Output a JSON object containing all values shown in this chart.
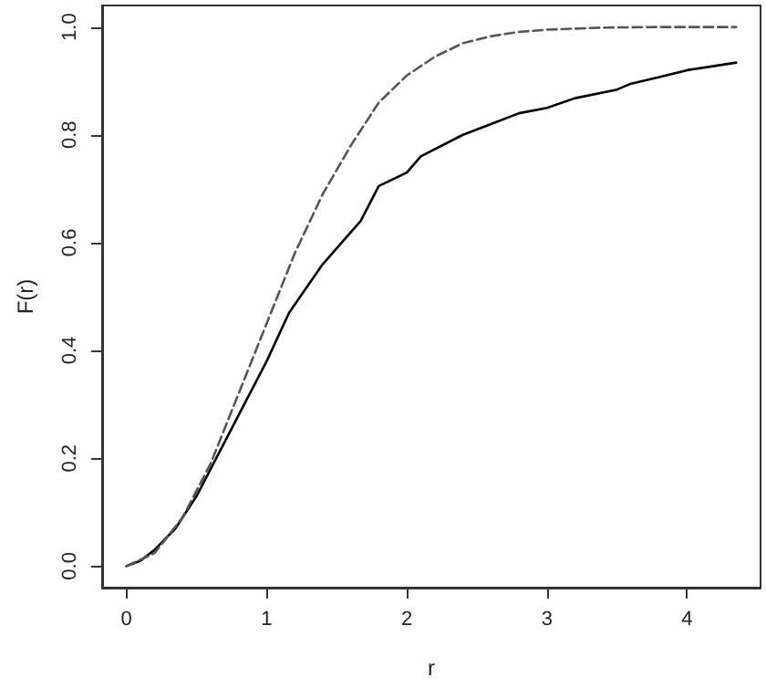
{
  "chart_data": {
    "type": "line",
    "xlabel": "r",
    "ylabel": "F(r)",
    "xlim": [
      -0.174,
      4.524
    ],
    "ylim": [
      -0.04,
      1.04
    ],
    "xticks": [
      0,
      1,
      2,
      3,
      4
    ],
    "yticks": [
      {
        "value": 0,
        "label": "0.0"
      },
      {
        "value": 0.2,
        "label": "0.2"
      },
      {
        "value": 0.4,
        "label": "0.4"
      },
      {
        "value": 0.6,
        "label": "0.6"
      },
      {
        "value": 0.8,
        "label": "0.8"
      },
      {
        "value": 1,
        "label": "1.0"
      }
    ],
    "grid": false,
    "marker": "none",
    "series": [
      {
        "color": "#000000",
        "line_style": "solid",
        "x": [
          0,
          0.1,
          0.2,
          0.35,
          0.5,
          0.6,
          0.8,
          1.0,
          1.16,
          1.4,
          1.67,
          1.8,
          2.0,
          2.1,
          2.4,
          2.6,
          2.8,
          3.0,
          3.2,
          3.5,
          3.6,
          3.8,
          4.0,
          4.35
        ],
        "values": [
          0,
          0.01,
          0.03,
          0.07,
          0.13,
          0.18,
          0.28,
          0.38,
          0.47,
          0.56,
          0.64,
          0.705,
          0.73,
          0.76,
          0.8,
          0.82,
          0.84,
          0.85,
          0.868,
          0.884,
          0.895,
          0.907,
          0.92,
          0.934
        ]
      },
      {
        "color": "#555555",
        "line_style": "dashed",
        "x": [
          0,
          0.2,
          0.4,
          0.6,
          0.8,
          1.0,
          1.2,
          1.4,
          1.6,
          1.8,
          2.0,
          2.2,
          2.4,
          2.6,
          2.8,
          3.0,
          3.4,
          3.8,
          4.35
        ],
        "values": [
          0,
          0.024,
          0.09,
          0.19,
          0.32,
          0.45,
          0.58,
          0.69,
          0.78,
          0.86,
          0.91,
          0.945,
          0.97,
          0.983,
          0.991,
          0.995,
          0.999,
          1.0,
          1.0
        ]
      }
    ]
  }
}
